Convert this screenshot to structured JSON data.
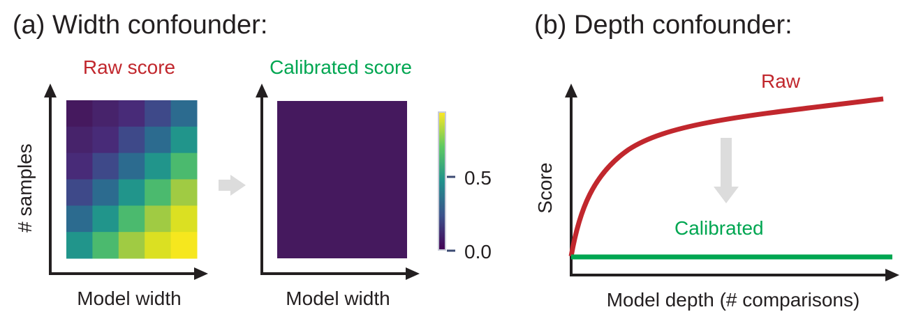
{
  "panel_a": {
    "title": "(a) Width confounder:",
    "raw_title": "Raw score",
    "calibrated_title": "Calibrated score",
    "xlabel": "Model width",
    "ylabel": "# samples",
    "raw_values": [
      [
        0.0,
        0.1,
        0.2,
        0.3,
        0.4
      ],
      [
        0.1,
        0.2,
        0.3,
        0.4,
        0.5
      ],
      [
        0.2,
        0.3,
        0.4,
        0.5,
        0.6
      ],
      [
        0.3,
        0.4,
        0.5,
        0.6,
        0.7
      ],
      [
        0.4,
        0.5,
        0.6,
        0.7,
        0.8
      ],
      [
        0.5,
        0.6,
        0.7,
        0.8,
        0.9
      ]
    ],
    "calibrated_value": 0.0,
    "colorbar": {
      "ticks": [
        "0.0",
        "0.5"
      ],
      "tick_values": [
        0.0,
        0.5
      ],
      "max": 0.93
    },
    "colors": {
      "raw_title": "#c1272d",
      "calibrated_title": "#00a651"
    }
  },
  "panel_b": {
    "title": "(b) Depth confounder:",
    "xlabel": "Model depth (# comparisons)",
    "ylabel": "Score",
    "raw_label": "Raw",
    "calibrated_label": "Calibrated",
    "colors": {
      "raw": "#c1272d",
      "calibrated": "#00a651"
    }
  }
}
